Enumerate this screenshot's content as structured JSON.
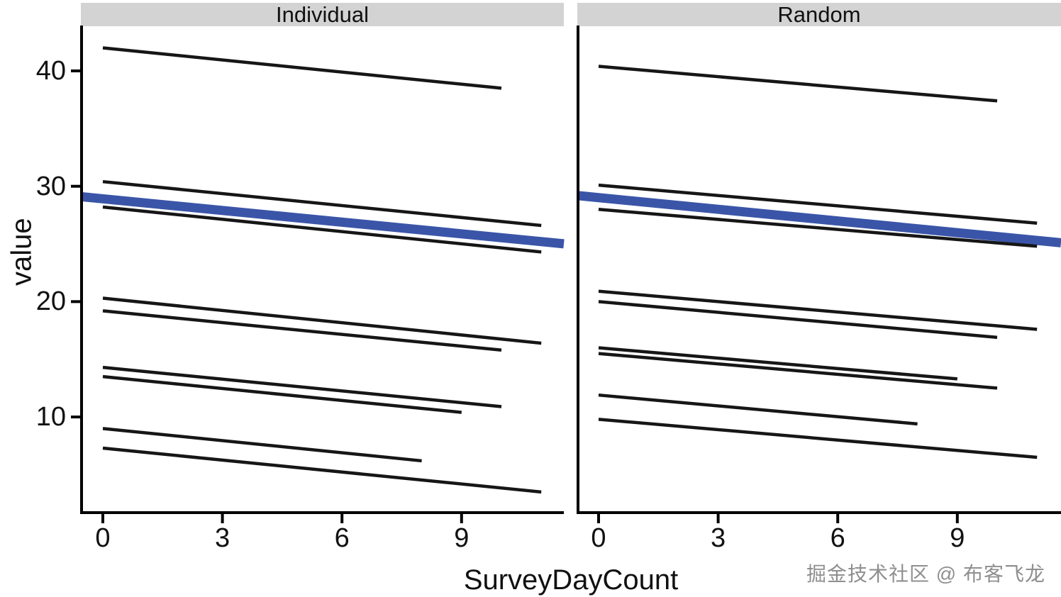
{
  "figure": {
    "watermark": "掘金技术社区 @ 布客飞龙"
  },
  "chart_data": {
    "type": "line",
    "title": "",
    "xlabel": "SurveyDayCount",
    "ylabel": "value",
    "x_ticks": [
      0,
      3,
      6,
      9
    ],
    "y_ticks": [
      40,
      30,
      20,
      10
    ],
    "xlim": [
      -0.55,
      11.6
    ],
    "ylim": [
      1.5,
      44
    ],
    "grid": "off",
    "legend": "none",
    "facets": [
      {
        "label": "Individual",
        "subject_lines": [
          {
            "x": [
              0,
              10
            ],
            "y": [
              42.0,
              38.5
            ]
          },
          {
            "x": [
              0,
              11
            ],
            "y": [
              30.4,
              26.6
            ]
          },
          {
            "x": [
              0,
              11
            ],
            "y": [
              28.2,
              24.3
            ]
          },
          {
            "x": [
              0,
              11
            ],
            "y": [
              20.3,
              16.4
            ]
          },
          {
            "x": [
              0,
              10
            ],
            "y": [
              19.2,
              15.8
            ]
          },
          {
            "x": [
              0,
              10
            ],
            "y": [
              14.3,
              10.9
            ]
          },
          {
            "x": [
              0,
              9
            ],
            "y": [
              13.5,
              10.4
            ]
          },
          {
            "x": [
              0,
              8
            ],
            "y": [
              9.0,
              6.2
            ]
          },
          {
            "x": [
              0,
              11
            ],
            "y": [
              7.3,
              3.5
            ]
          }
        ],
        "overall_line": {
          "x": [
            -0.55,
            11.6
          ],
          "y": [
            29.1,
            25.0
          ]
        }
      },
      {
        "label": "Random",
        "subject_lines": [
          {
            "x": [
              0,
              10
            ],
            "y": [
              40.4,
              37.4
            ]
          },
          {
            "x": [
              0,
              11
            ],
            "y": [
              30.1,
              26.8
            ]
          },
          {
            "x": [
              0,
              11
            ],
            "y": [
              28.0,
              24.8
            ]
          },
          {
            "x": [
              0,
              11
            ],
            "y": [
              20.9,
              17.6
            ]
          },
          {
            "x": [
              0,
              10
            ],
            "y": [
              20.0,
              16.9
            ]
          },
          {
            "x": [
              0,
              9
            ],
            "y": [
              16.0,
              13.3
            ]
          },
          {
            "x": [
              0,
              10
            ],
            "y": [
              15.5,
              12.5
            ]
          },
          {
            "x": [
              0,
              8
            ],
            "y": [
              11.9,
              9.4
            ]
          },
          {
            "x": [
              0,
              11
            ],
            "y": [
              9.8,
              6.5
            ]
          }
        ],
        "overall_line": {
          "x": [
            -0.55,
            11.6
          ],
          "y": [
            29.2,
            25.1
          ]
        }
      }
    ],
    "colors": {
      "subject_line": "#161616",
      "overall_line": "#3a55a8",
      "strip_bg": "#d3d3d3",
      "axis": "#000000"
    }
  }
}
